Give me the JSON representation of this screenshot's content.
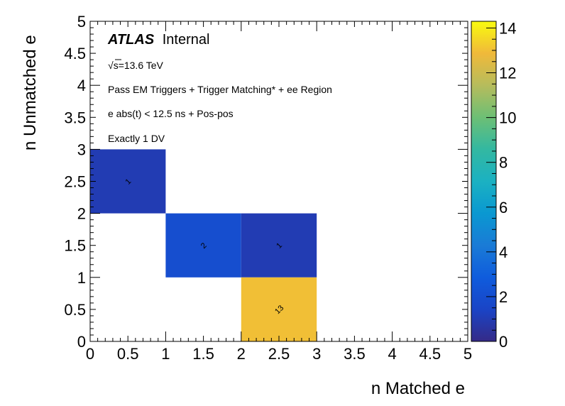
{
  "chart_data": {
    "type": "heatmap",
    "xlabel": "n Matched e",
    "ylabel": "n Unmatched e",
    "xlim": [
      0,
      5
    ],
    "ylim": [
      0,
      5
    ],
    "x_ticks": [
      "0",
      "0.5",
      "1",
      "1.5",
      "2",
      "2.5",
      "3",
      "3.5",
      "4",
      "4.5",
      "5"
    ],
    "y_ticks": [
      "0",
      "0.5",
      "1",
      "1.5",
      "2",
      "2.5",
      "3",
      "3.5",
      "4",
      "4.5",
      "5"
    ],
    "z_range": [
      0,
      14.3
    ],
    "colorbar_ticks": [
      "0",
      "2",
      "4",
      "6",
      "8",
      "10",
      "12",
      "14"
    ],
    "cells": [
      {
        "x0": 0,
        "x1": 1,
        "y0": 2,
        "y1": 3,
        "value": 1,
        "label": "1"
      },
      {
        "x0": 1,
        "x1": 2,
        "y0": 1,
        "y1": 2,
        "value": 2,
        "label": "2"
      },
      {
        "x0": 2,
        "x1": 3,
        "y0": 1,
        "y1": 2,
        "value": 1,
        "label": "1"
      },
      {
        "x0": 2,
        "x1": 3,
        "y0": 0,
        "y1": 1,
        "value": 13,
        "label": "13"
      }
    ],
    "annotations": {
      "atlas": "ATLAS",
      "internal": "Internal",
      "energy_prefix": "√",
      "energy_text": "s=13.6 TeV",
      "line1": "Pass EM Triggers + Trigger Matching* + ee Region",
      "line2": "e abs(t) < 12.5 ns + Pos-pos",
      "line3": "Exactly 1 DV"
    }
  }
}
